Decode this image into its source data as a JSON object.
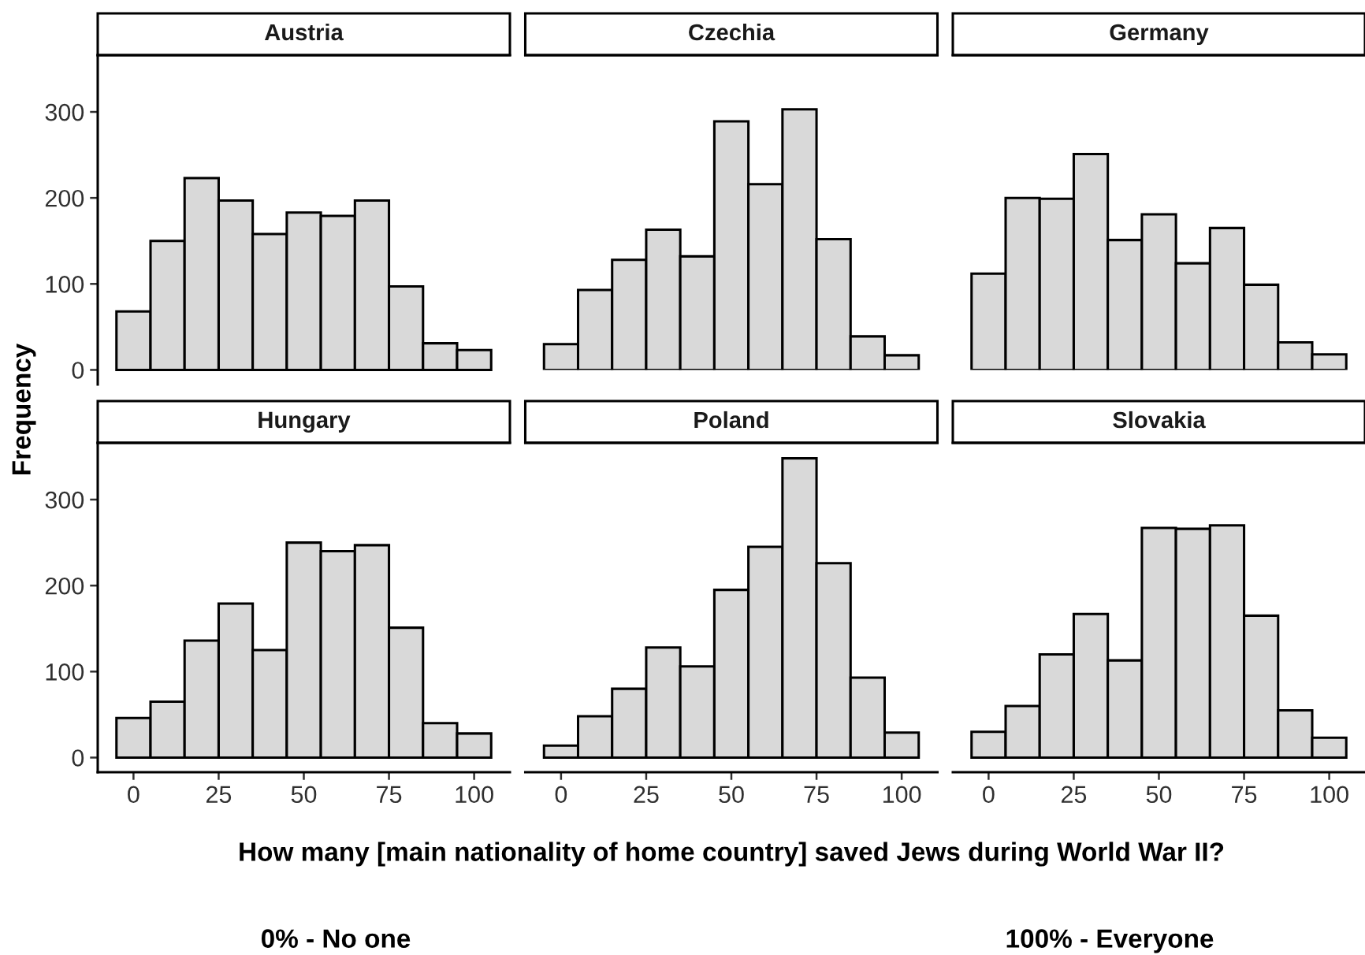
{
  "chart_data": [
    {
      "type": "histogram",
      "title": "Austria",
      "ylabel": "Frequency",
      "bins": [
        -5,
        5,
        15,
        25,
        35,
        45,
        55,
        65,
        75,
        85,
        95,
        105
      ],
      "values": [
        68,
        150,
        223,
        197,
        158,
        183,
        179,
        197,
        97,
        31,
        23
      ],
      "color": "#d9d9d9",
      "xlim": [
        -10.5,
        110.5
      ],
      "ylim": [
        -17,
        366
      ],
      "xticks": [
        0,
        25,
        50,
        75,
        100
      ],
      "yticks": [
        0,
        100,
        200,
        300
      ],
      "tick_labels": "y"
    },
    {
      "type": "histogram",
      "title": "Czechia",
      "bins": [
        -5,
        5,
        15,
        25,
        35,
        45,
        55,
        65,
        75,
        85,
        95,
        105
      ],
      "values": [
        30,
        93,
        128,
        163,
        132,
        289,
        216,
        303,
        152,
        39,
        17
      ],
      "color": "#d9d9d9",
      "xlim": [
        -10.5,
        110.5
      ],
      "ylim": [
        0,
        366
      ],
      "xticks": [
        0,
        25,
        50,
        75,
        100
      ],
      "yticks": [
        0,
        100,
        200,
        300
      ],
      "tick_labels": false
    },
    {
      "type": "histogram",
      "title": "Germany",
      "bins": [
        -5,
        5,
        15,
        25,
        35,
        45,
        55,
        65,
        75,
        85,
        95,
        105
      ],
      "values": [
        112,
        200,
        199,
        251,
        151,
        181,
        124,
        165,
        99,
        32,
        18
      ],
      "color": "#d9d9d9",
      "xlim": [
        -10.5,
        110.5
      ],
      "ylim": [
        0,
        366
      ],
      "xticks": [
        0,
        25,
        50,
        75,
        100
      ],
      "yticks": [
        0,
        100,
        200,
        300
      ],
      "tick_labels": false
    },
    {
      "type": "histogram",
      "title": "Hungary",
      "annotations": [
        "0% - No one"
      ],
      "bins": [
        -5,
        5,
        15,
        25,
        35,
        45,
        55,
        65,
        75,
        85,
        95,
        105
      ],
      "values": [
        46,
        65,
        136,
        179,
        125,
        250,
        240,
        247,
        151,
        40,
        28
      ],
      "color": "#d9d9d9",
      "xlim": [
        -10.5,
        110.5
      ],
      "ylim": [
        -17,
        366
      ],
      "xticks": [
        0,
        25,
        50,
        75,
        100
      ],
      "yticks": [
        0,
        100,
        200,
        300
      ]
    },
    {
      "type": "histogram",
      "title": "Poland",
      "xlabel": "How many [main nationality of home country] saved Jews during World War II?",
      "bins": [
        -5,
        5,
        15,
        25,
        35,
        45,
        55,
        65,
        75,
        85,
        95,
        105
      ],
      "values": [
        14,
        48,
        80,
        128,
        106,
        195,
        245,
        348,
        226,
        93,
        29
      ],
      "color": "#d9d9d9",
      "xlim": [
        -10.5,
        110.5
      ],
      "ylim": [
        -17,
        366
      ],
      "xticks": [
        0,
        25,
        50,
        75,
        100
      ],
      "yticks": [
        0,
        100,
        200,
        300
      ],
      "tick_labels": "x"
    },
    {
      "type": "histogram",
      "title": "Slovakia",
      "annotations": [
        "100% - Everyone"
      ],
      "bins": [
        -5,
        5,
        15,
        25,
        35,
        45,
        55,
        65,
        75,
        85,
        95,
        105
      ],
      "values": [
        30,
        60,
        120,
        167,
        113,
        267,
        266,
        270,
        165,
        55,
        23
      ],
      "color": "#d9d9d9",
      "xlim": [
        -10.5,
        110.5
      ],
      "ylim": [
        -17,
        366
      ],
      "xticks": [
        0,
        25,
        50,
        75,
        100
      ],
      "yticks": [
        0,
        100,
        200,
        300
      ],
      "tick_labels": "x"
    }
  ]
}
